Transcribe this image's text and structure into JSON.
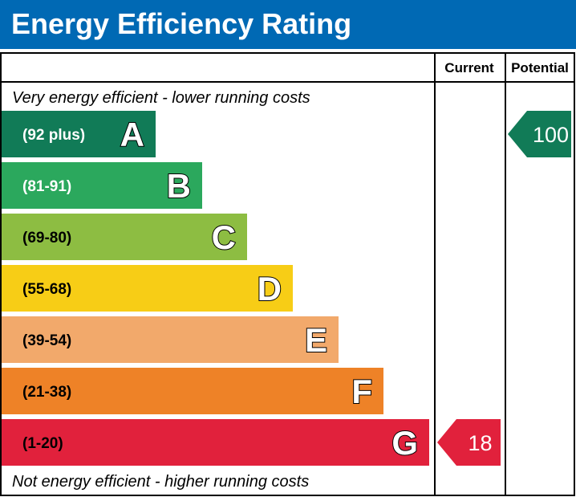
{
  "title": "Energy Efficiency Rating",
  "columns": {
    "current": "Current",
    "potential": "Potential"
  },
  "top_note": "Very energy efficient - lower running costs",
  "bottom_note": "Not energy efficient - higher running costs",
  "chart_data": {
    "type": "bar",
    "title": "Energy Efficiency Rating",
    "bands": [
      {
        "letter": "A",
        "range": "(92 plus)",
        "min": 92,
        "color": "#117b57",
        "range_color": "#ffffff"
      },
      {
        "letter": "B",
        "range": "(81-91)",
        "min": 81,
        "color": "#2ba85d",
        "range_color": "#ffffff"
      },
      {
        "letter": "C",
        "range": "(69-80)",
        "min": 69,
        "color": "#8dbd42",
        "range_color": "#000000"
      },
      {
        "letter": "D",
        "range": "(55-68)",
        "min": 55,
        "color": "#f7cd16",
        "range_color": "#000000"
      },
      {
        "letter": "E",
        "range": "(39-54)",
        "min": 39,
        "color": "#f2a96b",
        "range_color": "#000000"
      },
      {
        "letter": "F",
        "range": "(21-38)",
        "min": 21,
        "color": "#ee8227",
        "range_color": "#000000"
      },
      {
        "letter": "G",
        "range": "(1-20)",
        "min": 1,
        "color": "#e1213c",
        "range_color": "#000000"
      }
    ],
    "current": {
      "value": 18,
      "band": "G",
      "color": "#e1213c"
    },
    "potential": {
      "value": 100,
      "band": "A",
      "color": "#117b57"
    }
  }
}
